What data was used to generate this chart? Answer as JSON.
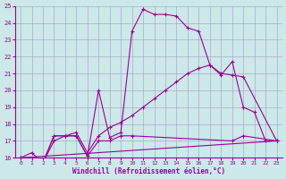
{
  "background_color": "#cce8e8",
  "grid_color": "#aaaacc",
  "line_color": "#990099",
  "xlim": [
    -0.5,
    23.5
  ],
  "ylim": [
    16,
    25
  ],
  "xlabel": "Windchill (Refroidissement éolien,°C)",
  "xlabel_color": "#990099",
  "xticks": [
    0,
    1,
    2,
    3,
    4,
    5,
    6,
    7,
    8,
    9,
    10,
    11,
    12,
    13,
    14,
    15,
    16,
    17,
    18,
    19,
    20,
    21,
    22,
    23
  ],
  "yticks": [
    16,
    17,
    18,
    19,
    20,
    21,
    22,
    23,
    24,
    25
  ],
  "line1_x": [
    0,
    1,
    2,
    3,
    4,
    5,
    6,
    7,
    8,
    9,
    10,
    11,
    12,
    13,
    14,
    15,
    16,
    17,
    18,
    19,
    20,
    21,
    22,
    23
  ],
  "line1_y": [
    16.0,
    16.3,
    15.7,
    17.3,
    17.3,
    17.3,
    16.1,
    20.0,
    17.2,
    17.5,
    23.5,
    24.8,
    24.5,
    24.5,
    24.4,
    23.7,
    23.5,
    21.5,
    20.9,
    21.7,
    19.0,
    18.7,
    17.0,
    17.0
  ],
  "line2_x": [
    0,
    2,
    3,
    4,
    5,
    6,
    7,
    8,
    9,
    10,
    19,
    20,
    23
  ],
  "line2_y": [
    16.0,
    15.7,
    17.3,
    17.3,
    17.3,
    16.1,
    17.0,
    17.0,
    17.3,
    17.3,
    17.0,
    17.3,
    17.0
  ],
  "line3_x": [
    0,
    2,
    3,
    4,
    5,
    6,
    7,
    8,
    9,
    10,
    11,
    12,
    13,
    14,
    15,
    16,
    17,
    18,
    19,
    20,
    23
  ],
  "line3_y": [
    16.0,
    15.7,
    17.0,
    17.3,
    17.5,
    16.3,
    17.3,
    17.8,
    18.1,
    18.5,
    19.0,
    19.5,
    20.0,
    20.5,
    21.0,
    21.3,
    21.5,
    21.0,
    20.9,
    20.8,
    17.0
  ],
  "line4_x": [
    0,
    23
  ],
  "line4_y": [
    16.0,
    17.0
  ]
}
